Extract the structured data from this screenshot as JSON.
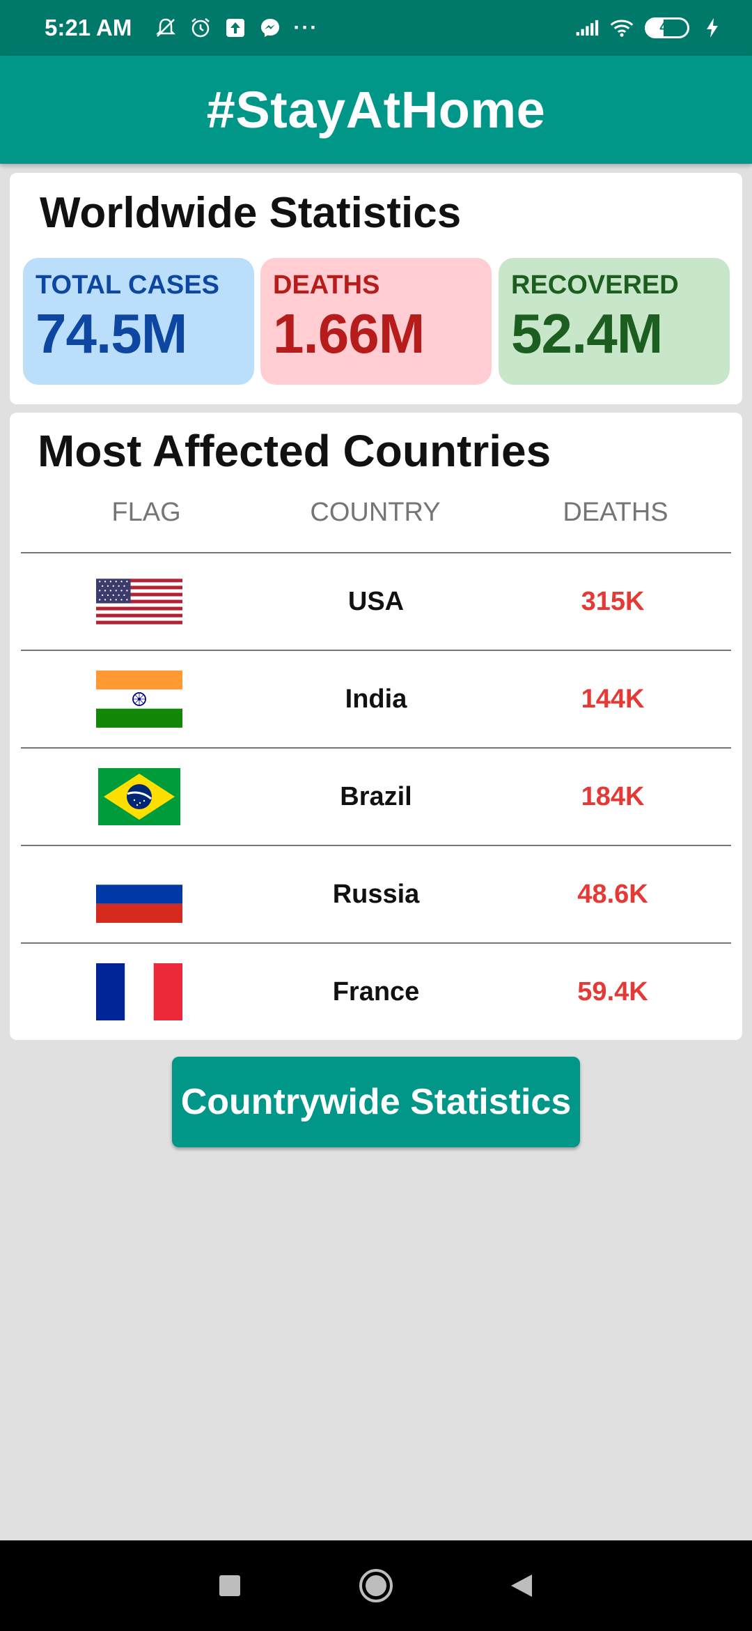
{
  "status_bar": {
    "time": "5:21 AM",
    "battery": "41",
    "icons": [
      "mute-icon",
      "alarm-icon",
      "upload-icon",
      "messenger-icon",
      "more-dots-icon",
      "signal-icon",
      "wifi-icon",
      "battery-icon",
      "charging-icon"
    ],
    "more": "···"
  },
  "app_bar": {
    "title": "#StayAtHome"
  },
  "worldwide": {
    "title": "Worldwide Statistics",
    "total_cases": {
      "label": "TOTAL CASES",
      "value": "74.5M",
      "bg": "#bbdefb",
      "color": "#0d47a1"
    },
    "deaths": {
      "label": "DEATHS",
      "value": "1.66M",
      "bg": "#ffcdd2",
      "color": "#b71c1c"
    },
    "recovered": {
      "label": "RECOVERED",
      "value": "52.4M",
      "bg": "#c8e6c9",
      "color": "#1b5e20"
    }
  },
  "most_affected": {
    "title": "Most Affected Countries",
    "columns": [
      "FLAG",
      "COUNTRY",
      "DEATHS"
    ],
    "rows": [
      {
        "flag": "usa-flag-icon",
        "country": "USA",
        "deaths": "315K"
      },
      {
        "flag": "india-flag-icon",
        "country": "India",
        "deaths": "144K"
      },
      {
        "flag": "brazil-flag-icon",
        "country": "Brazil",
        "deaths": "184K"
      },
      {
        "flag": "russia-flag-icon",
        "country": "Russia",
        "deaths": "48.6K"
      },
      {
        "flag": "france-flag-icon",
        "country": "France",
        "deaths": "59.4K"
      }
    ]
  },
  "button": {
    "label": "Countrywide Statistics"
  },
  "nav_bar": {
    "icons": [
      "recents-square-icon",
      "home-circle-icon",
      "back-triangle-icon"
    ]
  },
  "colors": {
    "primary": "#009688",
    "primary_dark": "#00796b",
    "deaths_text": "#e53935",
    "background": "#e0e0e0"
  }
}
